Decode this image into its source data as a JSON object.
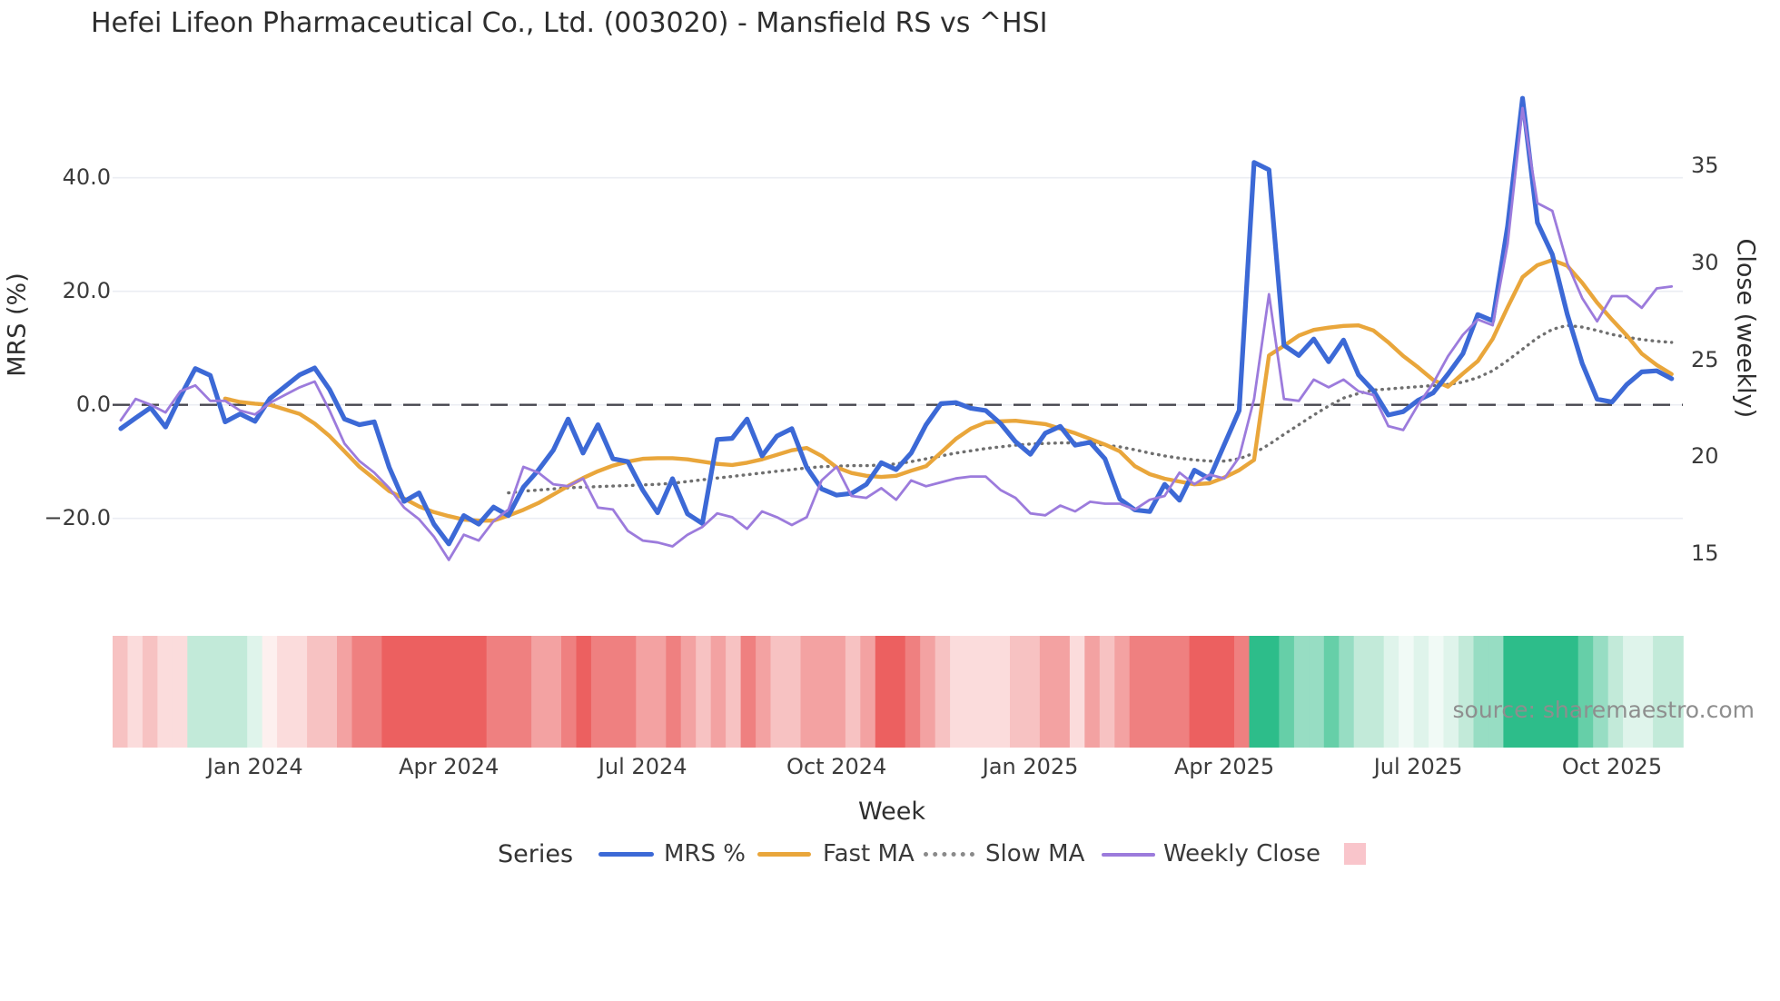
{
  "title": "Hefei Lifeon Pharmaceutical Co., Ltd. (003020) - Mansfield RS vs ^HSI",
  "watermark": "source: sharemaestro.com",
  "axes": {
    "left": {
      "title": "MRS (%)",
      "ticks": [
        {
          "label": "40.0",
          "value": 40
        },
        {
          "label": "20.0",
          "value": 20
        },
        {
          "label": "0.0",
          "value": 0
        },
        {
          "label": "−20.0",
          "value": -20
        }
      ]
    },
    "right": {
      "title": "Close (weekly)",
      "ticks": [
        {
          "label": "35",
          "value": 35
        },
        {
          "label": "30",
          "value": 30
        },
        {
          "label": "25",
          "value": 25
        },
        {
          "label": "20",
          "value": 20
        },
        {
          "label": "15",
          "value": 15
        }
      ]
    },
    "x": {
      "title": "Week",
      "ticks": [
        {
          "label": "Jan 2024",
          "week": 9
        },
        {
          "label": "Apr 2024",
          "week": 22
        },
        {
          "label": "Jul 2024",
          "week": 35
        },
        {
          "label": "Oct 2024",
          "week": 48
        },
        {
          "label": "Jan 2025",
          "week": 61
        },
        {
          "label": "Apr 2025",
          "week": 74
        },
        {
          "label": "Jul 2025",
          "week": 87
        },
        {
          "label": "Oct 2025",
          "week": 100
        }
      ]
    }
  },
  "legend": {
    "title": "Series",
    "items": [
      {
        "label": "MRS %",
        "color": "#3c69d6",
        "style": "solid"
      },
      {
        "label": "Fast MA",
        "color": "#e9a63b",
        "style": "solid"
      },
      {
        "label": "Slow MA",
        "color": "#8a8a8a",
        "style": "dotted"
      },
      {
        "label": "Weekly Close",
        "color": "#9c7bdc",
        "style": "solid"
      }
    ],
    "heat_swatch_color": "#f9c5cb"
  },
  "chart_data": {
    "type": "line",
    "title": "Hefei Lifeon Pharmaceutical Co., Ltd. (003020) - Mansfield RS vs ^HSI",
    "xlabel": "Week",
    "n_weeks": 105,
    "x_tick_labels": [
      "Jan 2024",
      "Apr 2024",
      "Jul 2024",
      "Oct 2024",
      "Jan 2025",
      "Apr 2025",
      "Jul 2025",
      "Oct 2025"
    ],
    "x_tick_week_indices": [
      9,
      22,
      35,
      48,
      61,
      74,
      87,
      100
    ],
    "left_axis": {
      "label": "MRS (%)",
      "ticks": [
        40,
        20,
        0,
        -20
      ],
      "range_est": [
        -28,
        57
      ],
      "grid": true
    },
    "right_axis": {
      "label": "Close (weekly)",
      "ticks": [
        35,
        30,
        25,
        20,
        15
      ],
      "range_est": [
        14,
        38.5
      ]
    },
    "zero_line": {
      "value": 0,
      "style": "dashed",
      "color": "#46464e"
    },
    "legend_position": "bottom",
    "series": [
      {
        "name": "MRS %",
        "axis": "left",
        "color": "#3c69d6",
        "style": "solid",
        "width": 5.2,
        "values": [
          -4.2,
          -2.3,
          -0.5,
          -3.9,
          1.5,
          6.4,
          5.2,
          -3.0,
          -1.6,
          -2.9,
          1.1,
          3.2,
          5.3,
          6.5,
          2.7,
          -2.5,
          -3.5,
          -3.0,
          -11.0,
          -17.0,
          -15.5,
          -21.0,
          -24.5,
          -19.5,
          -21.0,
          -18.0,
          -19.5,
          -14.5,
          -11.5,
          -8.0,
          -2.5,
          -8.5,
          -3.5,
          -9.5,
          -10.0,
          -15.0,
          -19.0,
          -13.0,
          -19.2,
          -20.9,
          -6.1,
          -5.9,
          -2.5,
          -9.0,
          -5.5,
          -4.2,
          -11.0,
          -14.8,
          -15.9,
          -15.6,
          -14.0,
          -10.2,
          -11.4,
          -8.5,
          -3.5,
          0.2,
          0.4,
          -0.6,
          -1.0,
          -3.3,
          -6.5,
          -8.7,
          -5.0,
          -3.8,
          -7.1,
          -6.6,
          -9.5,
          -16.6,
          -18.5,
          -18.8,
          -14.0,
          -16.8,
          -11.5,
          -13.0,
          -7.0,
          -1.0,
          42.7,
          41.4,
          10.5,
          8.7,
          11.6,
          7.6,
          11.4,
          5.3,
          2.5,
          -1.8,
          -1.2,
          0.8,
          2.1,
          5.4,
          9.0,
          15.9,
          14.8,
          31.5,
          54.0,
          32.1,
          26.5,
          16.0,
          7.3,
          1.0,
          0.5,
          3.6,
          5.8,
          6.0,
          4.6
        ]
      },
      {
        "name": "Fast MA",
        "axis": "left",
        "color": "#e9a63b",
        "style": "solid",
        "width": 4.4,
        "values": [
          null,
          null,
          null,
          null,
          null,
          null,
          null,
          1.1,
          0.5,
          0.2,
          0.0,
          -0.8,
          -1.6,
          -3.3,
          -5.5,
          -8.2,
          -10.9,
          -13.0,
          -15.2,
          -16.5,
          -17.9,
          -18.9,
          -19.6,
          -20.2,
          -20.4,
          -20.4,
          -19.5,
          -18.5,
          -17.3,
          -15.8,
          -14.3,
          -12.9,
          -11.7,
          -10.7,
          -10.0,
          -9.5,
          -9.4,
          -9.4,
          -9.6,
          -10.0,
          -10.4,
          -10.6,
          -10.2,
          -9.6,
          -8.8,
          -8.0,
          -7.6,
          -9.0,
          -11.0,
          -12.0,
          -12.5,
          -12.7,
          -12.5,
          -11.6,
          -10.8,
          -8.4,
          -6.0,
          -4.2,
          -3.1,
          -2.9,
          -2.8,
          -3.1,
          -3.4,
          -4.2,
          -5.0,
          -6.0,
          -7.0,
          -8.2,
          -10.8,
          -12.2,
          -13.0,
          -13.5,
          -14.0,
          -13.8,
          -12.8,
          -11.5,
          -9.7,
          8.7,
          10.4,
          12.2,
          13.2,
          13.6,
          13.9,
          14.0,
          13.1,
          11.0,
          8.6,
          6.6,
          4.4,
          3.2,
          5.5,
          7.7,
          11.6,
          17.2,
          22.5,
          24.6,
          25.5,
          24.5,
          21.5,
          18.0,
          15.0,
          12.2,
          9.0,
          7.0,
          5.4
        ]
      },
      {
        "name": "Slow MA",
        "axis": "left",
        "color": "#6f6f6f",
        "style": "dotted",
        "width": 3.4,
        "values": [
          null,
          null,
          null,
          null,
          null,
          null,
          null,
          null,
          null,
          null,
          null,
          null,
          null,
          null,
          null,
          null,
          null,
          null,
          null,
          null,
          null,
          null,
          null,
          null,
          null,
          null,
          -15.5,
          -15.2,
          -15.0,
          -14.8,
          -14.6,
          -14.5,
          -14.4,
          -14.3,
          -14.2,
          -14.1,
          -14.0,
          -13.8,
          -13.5,
          -13.2,
          -12.9,
          -12.6,
          -12.3,
          -12.0,
          -11.7,
          -11.4,
          -11.1,
          -10.9,
          -10.8,
          -10.7,
          -10.7,
          -10.6,
          -10.4,
          -10.0,
          -9.5,
          -9.0,
          -8.5,
          -8.1,
          -7.7,
          -7.4,
          -7.1,
          -6.9,
          -6.8,
          -6.7,
          -6.7,
          -6.8,
          -7.1,
          -7.4,
          -7.9,
          -8.5,
          -9.0,
          -9.4,
          -9.7,
          -9.9,
          -9.9,
          -9.5,
          -8.5,
          -7.0,
          -5.2,
          -3.5,
          -1.8,
          -0.2,
          1.2,
          2.0,
          2.6,
          2.8,
          3.0,
          3.2,
          3.4,
          3.6,
          4.0,
          4.8,
          6.0,
          7.8,
          9.8,
          11.8,
          13.3,
          14.0,
          13.7,
          13.1,
          12.4,
          11.9,
          11.5,
          11.2,
          11.0
        ]
      },
      {
        "name": "Weekly Close",
        "axis": "right",
        "color": "#9c7bdc",
        "style": "solid",
        "width": 2.8,
        "values": [
          21.9,
          23.0,
          22.7,
          22.3,
          23.4,
          23.7,
          22.9,
          22.9,
          22.4,
          22.2,
          22.8,
          23.2,
          23.6,
          23.9,
          22.4,
          20.7,
          19.8,
          19.2,
          18.4,
          17.4,
          16.8,
          15.9,
          14.7,
          16.0,
          15.7,
          16.7,
          17.3,
          19.5,
          19.2,
          18.6,
          18.5,
          18.9,
          17.4,
          17.3,
          16.2,
          15.7,
          15.6,
          15.4,
          16.0,
          16.4,
          17.1,
          16.9,
          16.3,
          17.2,
          16.9,
          16.5,
          16.9,
          18.8,
          19.5,
          18.0,
          17.9,
          18.4,
          17.8,
          18.8,
          18.5,
          18.7,
          18.9,
          19.0,
          19.0,
          18.3,
          17.9,
          17.1,
          17.0,
          17.5,
          17.2,
          17.7,
          17.6,
          17.6,
          17.3,
          17.8,
          18.0,
          19.2,
          18.6,
          19.1,
          18.9,
          20.0,
          23.0,
          28.4,
          23.0,
          22.9,
          24.0,
          23.6,
          24.0,
          23.4,
          23.2,
          21.6,
          21.4,
          22.7,
          23.8,
          25.2,
          26.3,
          27.1,
          26.8,
          31.0,
          38.0,
          33.1,
          32.7,
          30.0,
          28.2,
          27.0,
          28.3,
          28.3,
          27.7,
          28.7,
          28.8
        ]
      }
    ],
    "heatmap": {
      "description": "weekly red/green intensity strip below plot",
      "colors": [
        "#f7c2c2",
        "#fbdcdc",
        "#f7c2c2",
        "#fbdcdc",
        "#fbdcdc",
        "#c2ead9",
        "#c2ead9",
        "#c2ead9",
        "#c2ead9",
        "#dff4eb",
        "#fdf0ef",
        "#fbdcdc",
        "#fbdcdc",
        "#f7c2c2",
        "#f7c2c2",
        "#f3a2a2",
        "#ef8080",
        "#ef8080",
        "#ec6060",
        "#ec6060",
        "#ec6060",
        "#ec6060",
        "#ec6060",
        "#ec6060",
        "#ec6060",
        "#ef8080",
        "#ef8080",
        "#ef8080",
        "#f3a2a2",
        "#f3a2a2",
        "#ef8080",
        "#ec6060",
        "#ef8080",
        "#ef8080",
        "#ef8080",
        "#f3a2a2",
        "#f3a2a2",
        "#ef8080",
        "#f3a2a2",
        "#f7c2c2",
        "#f3a2a2",
        "#f7c2c2",
        "#ef8080",
        "#f3a2a2",
        "#f7c2c2",
        "#f7c2c2",
        "#f3a2a2",
        "#f3a2a2",
        "#f3a2a2",
        "#f7c2c2",
        "#f3a2a2",
        "#ec6060",
        "#ec6060",
        "#ef8080",
        "#f3a2a2",
        "#f7c2c2",
        "#fbdcdc",
        "#fbdcdc",
        "#fbdcdc",
        "#fbdcdc",
        "#f7c2c2",
        "#f7c2c2",
        "#f3a2a2",
        "#f3a2a2",
        "#fbdcdc",
        "#f3a2a2",
        "#f7c2c2",
        "#f3a2a2",
        "#ef8080",
        "#ef8080",
        "#ef8080",
        "#ef8080",
        "#ec6060",
        "#ec6060",
        "#ec6060",
        "#ef8080",
        "#2dbd8a",
        "#2dbd8a",
        "#66cfa8",
        "#97ddc3",
        "#97ddc3",
        "#66cfa8",
        "#97ddc3",
        "#c2ead9",
        "#c2ead9",
        "#dff4eb",
        "#f1faf6",
        "#dff4eb",
        "#f1faf6",
        "#dff4eb",
        "#c2ead9",
        "#97ddc3",
        "#97ddc3",
        "#2dbd8a",
        "#2dbd8a",
        "#2dbd8a",
        "#2dbd8a",
        "#2dbd8a",
        "#66cfa8",
        "#97ddc3",
        "#c2ead9",
        "#dff4eb",
        "#dff4eb",
        "#c2ead9",
        "#c2ead9"
      ]
    }
  }
}
